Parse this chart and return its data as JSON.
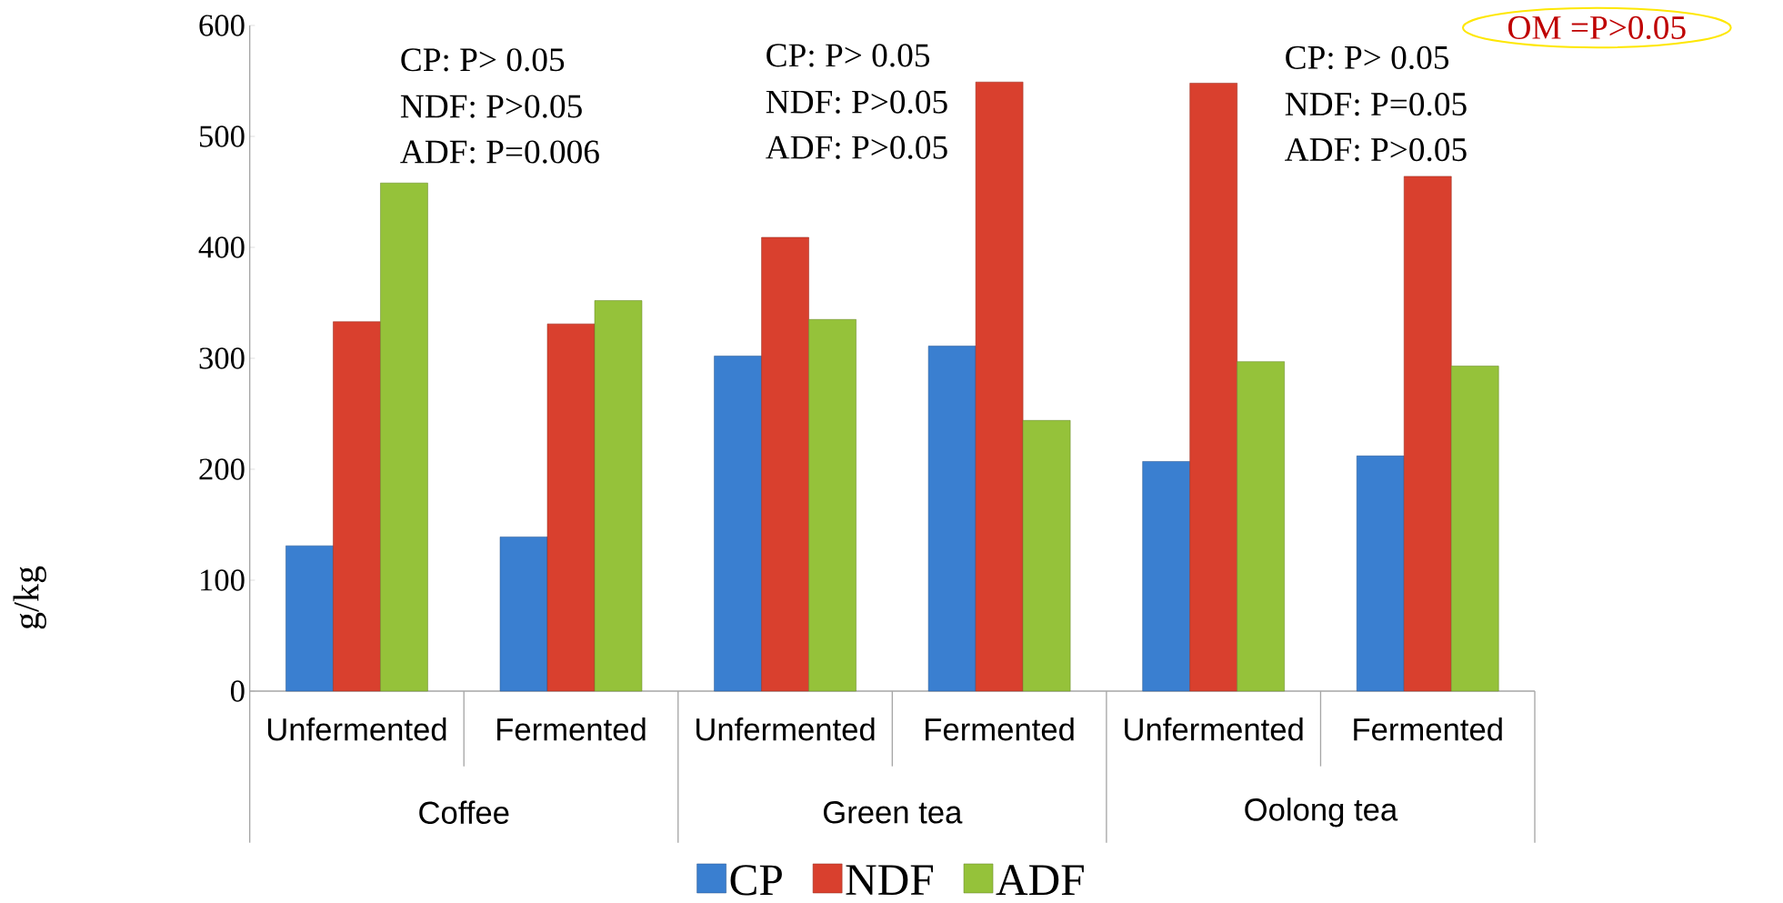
{
  "chart_data": {
    "type": "bar",
    "ylabel": "g/kg",
    "categories": [
      "Unfermented",
      "Fermented",
      "Unfermented",
      "Fermented",
      "Unfermented",
      "Fermented"
    ],
    "series": [
      {
        "name": "CP",
        "color": "#3a7fd0",
        "values": [
          131,
          139,
          302,
          311,
          207,
          212
        ]
      },
      {
        "name": "NDF",
        "color": "#d9402e",
        "values": [
          333,
          331,
          409,
          549,
          548,
          464
        ]
      },
      {
        "name": "ADF",
        "color": "#95c23a",
        "values": [
          458,
          352,
          335,
          244,
          297,
          293
        ]
      }
    ],
    "ylim": [
      0,
      600
    ],
    "yticks": [
      0,
      100,
      200,
      300,
      400,
      500,
      600
    ],
    "legend": "bottom",
    "annotations": [
      "Coffee",
      "Green tea",
      "Oolong tea",
      "CP: P> 0.05",
      "NDF: P>0.05",
      "ADF: P=0.006",
      "CP: P> 0.05",
      "NDF: P>0.05",
      "ADF: P>0.05",
      "CP: P> 0.05",
      "NDF: P=0.05",
      "ADF: P>0.05",
      "OM =P>0.05"
    ]
  }
}
